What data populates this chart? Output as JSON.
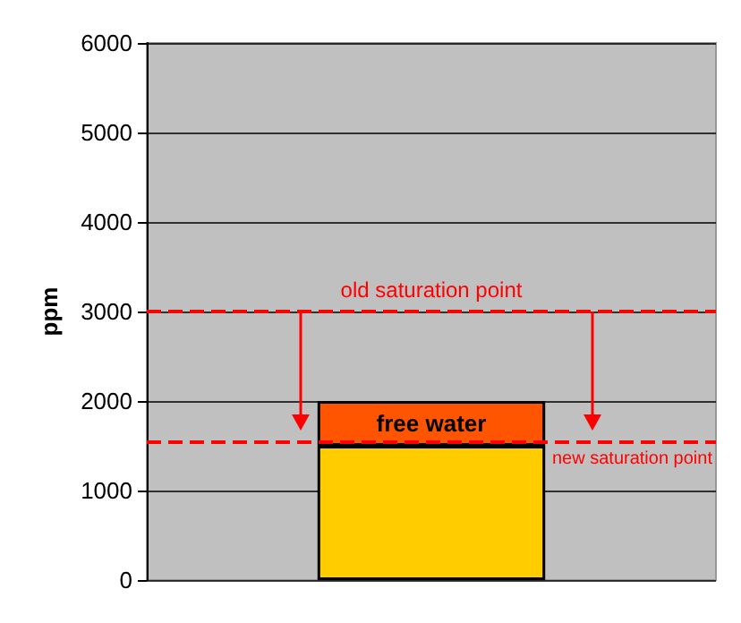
{
  "chart_data": {
    "type": "bar",
    "stacked": true,
    "ylabel": "ppm",
    "categories": [
      null
    ],
    "series": [
      {
        "color": "#ffcc00",
        "values": [
          1500
        ]
      },
      {
        "name": "free water",
        "color": "#ff5500",
        "values": [
          500
        ]
      }
    ],
    "ylim": [
      0,
      6000
    ],
    "yticks": [
      0,
      1000,
      2000,
      3000,
      4000,
      5000,
      6000
    ],
    "grid": "y",
    "tick_labels": "y",
    "ref_lines": [
      {
        "axis": "y",
        "value": 3000,
        "label": "old saturation point",
        "color": "#ff0000",
        "line_style": "dashed"
      },
      {
        "axis": "y",
        "value": 1550,
        "label": "new saturation point",
        "color": "#ff0000",
        "line_style": "dashed"
      }
    ]
  }
}
